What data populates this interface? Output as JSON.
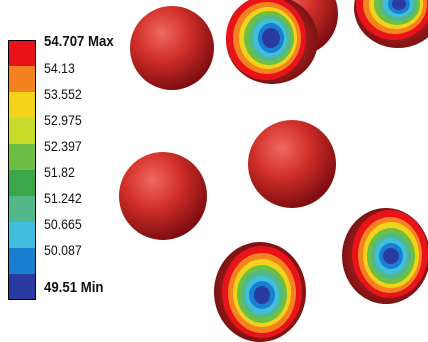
{
  "legend": {
    "max_value": "54.707",
    "max_tag": "Max",
    "min_value": "49.51",
    "min_tag": "Min",
    "values": [
      "54.707",
      "54.13",
      "53.552",
      "52.975",
      "52.397",
      "51.82",
      "51.242",
      "50.665",
      "50.087",
      "49.51"
    ],
    "colors": [
      "#e8141a",
      "#f58220",
      "#f3d21a",
      "#c8da2a",
      "#6cbe45",
      "#3aa84a",
      "#52b88a",
      "#3fbfe0",
      "#1a7fd0",
      "#2a3aa0"
    ]
  },
  "colors": {
    "sphere_base": "#d62a26",
    "sphere_dark": "#8a0f12",
    "sphere_light": "#e85a52",
    "background": "#ffffff"
  }
}
